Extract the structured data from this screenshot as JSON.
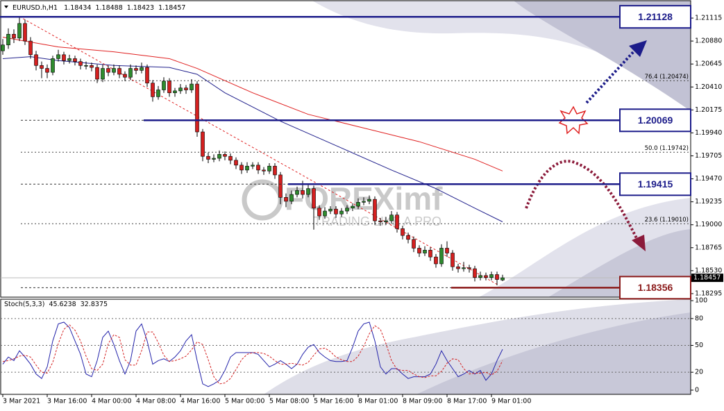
{
  "chart_data": {
    "type": "candlestick",
    "symbol": "EURUSD.h,H1",
    "up_color": "#2e8b2e",
    "down_color": "#d42020",
    "ylim": [
      1.18259,
      1.21293
    ],
    "yticks": [
      1.21115,
      {
        "value": 1.2088,
        "label": "1.20880"
      },
      1.20645,
      {
        "value": 1.2041,
        "label": "1.20410"
      },
      1.20175,
      {
        "value": 1.1994,
        "label": "1.19940"
      },
      1.19705,
      {
        "value": 1.1947,
        "label": "1.19470"
      },
      1.19235,
      {
        "value": 1.19,
        "label": "1.19000"
      },
      1.18765,
      {
        "value": 1.1853,
        "label": "1.18530"
      },
      1.18295
    ],
    "xticks": [
      {
        "value": 0,
        "label": "3 Mar 2021"
      },
      {
        "value": 8,
        "label": "3 Mar 16:00"
      },
      {
        "value": 16,
        "label": "4 Mar 00:00"
      },
      {
        "value": 24,
        "label": "4 Mar 08:00"
      },
      {
        "value": 32,
        "label": "4 Mar 16:00"
      },
      {
        "value": 40,
        "label": "5 Mar 00:00"
      },
      {
        "value": 48,
        "label": "5 Mar 08:00"
      },
      {
        "value": 56,
        "label": "5 Mar 16:00"
      },
      {
        "value": 64,
        "label": "8 Mar 01:00"
      },
      {
        "value": 72,
        "label": "8 Mar 09:00"
      },
      {
        "value": 80,
        "label": "8 Mar 17:00"
      },
      {
        "value": 88,
        "label": "9 Mar 01:00"
      }
    ],
    "ohlc": [
      [
        1.2078,
        1.209,
        1.2074,
        1.2084
      ],
      [
        1.2084,
        1.2101,
        1.208,
        1.2095
      ],
      [
        1.2095,
        1.21,
        1.2086,
        1.2091
      ],
      [
        1.2091,
        1.2113,
        1.2088,
        1.2106
      ],
      [
        1.2106,
        1.211,
        1.2084,
        1.2088
      ],
      [
        1.2088,
        1.2092,
        1.207,
        1.2074
      ],
      [
        1.2074,
        1.2078,
        1.2058,
        1.2063
      ],
      [
        1.2063,
        1.2067,
        1.205,
        1.206
      ],
      [
        1.206,
        1.2064,
        1.205,
        1.2056
      ],
      [
        1.2056,
        1.2073,
        1.2053,
        1.207
      ],
      [
        1.207,
        1.2079,
        1.2067,
        1.2074
      ],
      [
        1.2074,
        1.2077,
        1.2064,
        1.2068
      ],
      [
        1.2068,
        1.2074,
        1.2065,
        1.207
      ],
      [
        1.207,
        1.2073,
        1.2063,
        1.2067
      ],
      [
        1.2067,
        1.207,
        1.2059,
        1.2063
      ],
      [
        1.2063,
        1.2067,
        1.2059,
        1.2063
      ],
      [
        1.2063,
        1.2066,
        1.2057,
        1.2061
      ],
      [
        1.2061,
        1.2064,
        1.2045,
        1.2049
      ],
      [
        1.2049,
        1.2064,
        1.2046,
        1.206
      ],
      [
        1.206,
        1.2063,
        1.2052,
        1.2056
      ],
      [
        1.2056,
        1.2064,
        1.2053,
        1.206
      ],
      [
        1.206,
        1.2063,
        1.205,
        1.2054
      ],
      [
        1.2054,
        1.2057,
        1.2047,
        1.2051
      ],
      [
        1.2051,
        1.2064,
        1.2048,
        1.206
      ],
      [
        1.206,
        1.2063,
        1.2054,
        1.2058
      ],
      [
        1.2058,
        1.2066,
        1.2055,
        1.2061
      ],
      [
        1.2061,
        1.2064,
        1.2041,
        1.2045
      ],
      [
        1.2045,
        1.2048,
        1.2026,
        1.2031
      ],
      [
        1.2031,
        1.2042,
        1.2028,
        1.2038
      ],
      [
        1.2038,
        1.2051,
        1.2035,
        1.2047
      ],
      [
        1.2047,
        1.205,
        1.2031,
        1.2035
      ],
      [
        1.2035,
        1.204,
        1.2031,
        1.2037
      ],
      [
        1.2037,
        1.2044,
        1.2034,
        1.204
      ],
      [
        1.204,
        1.2043,
        1.2034,
        1.2038
      ],
      [
        1.2038,
        1.2049,
        1.2035,
        1.2044
      ],
      [
        1.2044,
        1.2047,
        1.199,
        1.1995
      ],
      [
        1.1995,
        1.1998,
        1.1965,
        1.197
      ],
      [
        1.197,
        1.1974,
        1.1963,
        1.1967
      ],
      [
        1.1967,
        1.1972,
        1.1964,
        1.1968
      ],
      [
        1.1968,
        1.1976,
        1.1965,
        1.1972
      ],
      [
        1.1972,
        1.1975,
        1.1966,
        1.197
      ],
      [
        1.197,
        1.1973,
        1.1962,
        1.1966
      ],
      [
        1.1966,
        1.1969,
        1.1957,
        1.1961
      ],
      [
        1.1961,
        1.1964,
        1.1952,
        1.1956
      ],
      [
        1.1956,
        1.1964,
        1.1953,
        1.196
      ],
      [
        1.196,
        1.1964,
        1.1957,
        1.1961
      ],
      [
        1.1961,
        1.1964,
        1.1952,
        1.1956
      ],
      [
        1.1956,
        1.1959,
        1.1951,
        1.1955
      ],
      [
        1.1955,
        1.1963,
        1.1952,
        1.196
      ],
      [
        1.196,
        1.1963,
        1.1947,
        1.1951
      ],
      [
        1.1951,
        1.1954,
        1.1921,
        1.1928
      ],
      [
        1.1928,
        1.1932,
        1.1918,
        1.1924
      ],
      [
        1.1924,
        1.1935,
        1.1921,
        1.1931
      ],
      [
        1.1931,
        1.1939,
        1.1928,
        1.1935
      ],
      [
        1.1935,
        1.1945,
        1.1927,
        1.1931
      ],
      [
        1.1931,
        1.1941,
        1.1928,
        1.1937
      ],
      [
        1.1937,
        1.194,
        1.1895,
        1.1917
      ],
      [
        1.1917,
        1.192,
        1.1905,
        1.1909
      ],
      [
        1.1909,
        1.1918,
        1.1906,
        1.1914
      ],
      [
        1.1914,
        1.1919,
        1.1911,
        1.1916
      ],
      [
        1.1916,
        1.1919,
        1.1907,
        1.1911
      ],
      [
        1.1911,
        1.1917,
        1.1908,
        1.1914
      ],
      [
        1.1914,
        1.192,
        1.1911,
        1.1917
      ],
      [
        1.1917,
        1.1922,
        1.1914,
        1.1919
      ],
      [
        1.1919,
        1.1927,
        1.1916,
        1.1923
      ],
      [
        1.1923,
        1.1928,
        1.192,
        1.1924
      ],
      [
        1.1924,
        1.193,
        1.1921,
        1.1926
      ],
      [
        1.1926,
        1.1929,
        1.19,
        1.1904
      ],
      [
        1.1904,
        1.1907,
        1.1899,
        1.1903
      ],
      [
        1.1903,
        1.1908,
        1.19,
        1.1904
      ],
      [
        1.1904,
        1.1914,
        1.1901,
        1.191
      ],
      [
        1.191,
        1.1913,
        1.1892,
        1.1896
      ],
      [
        1.1896,
        1.1899,
        1.1885,
        1.1889
      ],
      [
        1.1889,
        1.1892,
        1.1881,
        1.1885
      ],
      [
        1.1885,
        1.1888,
        1.1872,
        1.1876
      ],
      [
        1.1876,
        1.1879,
        1.1867,
        1.1871
      ],
      [
        1.1871,
        1.1878,
        1.1868,
        1.1874
      ],
      [
        1.1874,
        1.1877,
        1.1863,
        1.1867
      ],
      [
        1.1867,
        1.187,
        1.1856,
        1.186
      ],
      [
        1.186,
        1.188,
        1.1857,
        1.1876
      ],
      [
        1.1876,
        1.1883,
        1.1867,
        1.1871
      ],
      [
        1.1871,
        1.1874,
        1.1853,
        1.1857
      ],
      [
        1.1857,
        1.186,
        1.1851,
        1.1855
      ],
      [
        1.1855,
        1.1862,
        1.1852,
        1.1856
      ],
      [
        1.1856,
        1.1859,
        1.1851,
        1.1855
      ],
      [
        1.1855,
        1.1858,
        1.1842,
        1.1846
      ],
      [
        1.1846,
        1.1852,
        1.1843,
        1.1848
      ],
      [
        1.1848,
        1.1851,
        1.1843,
        1.1846
      ],
      [
        1.1846,
        1.1852,
        1.1843,
        1.1849
      ],
      [
        1.1849,
        1.1852,
        1.1838,
        1.1844
      ],
      [
        1.18434,
        1.18488,
        1.18423,
        1.18457
      ]
    ],
    "moving_averages": [
      {
        "color": "#e02020",
        "x": [
          0,
          10,
          20,
          30,
          35,
          45,
          55,
          65,
          75,
          85,
          90
        ],
        "values": [
          1.2092,
          1.2082,
          1.2077,
          1.207,
          1.206,
          1.2035,
          1.2013,
          1.1999,
          1.1985,
          1.1967,
          1.1955
        ]
      },
      {
        "color": "#20208c",
        "x": [
          0,
          5,
          10,
          20,
          30,
          35,
          40,
          50,
          60,
          70,
          78,
          85,
          90
        ],
        "values": [
          1.207,
          1.2072,
          1.2068,
          1.2063,
          1.2061,
          1.2054,
          1.2035,
          1.2006,
          1.1981,
          1.1956,
          1.1937,
          1.1917,
          1.1903
        ]
      }
    ],
    "trendline": {
      "color": "#e02020",
      "x": [
        3,
        89
      ],
      "values": [
        1.2113,
        1.1839
      ]
    },
    "levels": [
      {
        "value": 1.21128,
        "color": "#1c1c8a"
      },
      {
        "value": 1.20069,
        "color": "#1c1c8a"
      },
      {
        "value": 1.19415,
        "color": "#1c1c8a"
      },
      {
        "value": 1.18356,
        "color": "#8b1a1a"
      }
    ],
    "fibonacci": [
      {
        "label": "76.4 (1.20474)",
        "value": 1.20474
      },
      {
        "label": "50.0 (1.19742)",
        "value": 1.19742
      },
      {
        "label": "23.6 (1.19010)",
        "value": 1.1901
      }
    ],
    "watermark": {
      "brand": "FOREXimf",
      "tagline": "TRADING LIKE A PRO"
    },
    "stochastic": {
      "name": "Stoch(5,3,3)",
      "ylim": [
        -4.7,
        101.6
      ],
      "yticks": [
        100,
        80,
        50,
        20,
        0
      ],
      "levels": [
        80,
        50,
        20
      ],
      "series": [
        {
          "name": "main",
          "color": "#2222aa",
          "values": [
            29,
            37,
            33,
            44,
            37,
            29,
            18,
            13,
            26,
            55,
            74,
            76,
            70,
            55,
            40,
            18,
            15,
            33,
            59,
            66,
            51,
            33,
            18,
            33,
            66,
            74,
            55,
            29,
            33,
            35,
            32,
            37,
            44,
            55,
            62,
            33,
            7,
            4,
            7,
            11,
            22,
            37,
            42,
            42,
            42,
            42,
            40,
            33,
            26,
            29,
            33,
            29,
            24,
            29,
            40,
            48,
            51,
            42,
            37,
            33,
            32,
            32,
            33,
            48,
            66,
            74,
            76,
            55,
            26,
            18,
            24,
            24,
            18,
            13,
            15,
            15,
            15,
            18,
            29,
            44,
            33,
            24,
            15,
            18,
            22,
            18,
            22,
            11,
            18,
            33,
            45.6238
          ]
        },
        {
          "name": "signal",
          "color": "#d42020",
          "values": [
            32,
            33,
            35,
            38,
            39,
            37,
            28,
            20,
            19,
            31,
            52,
            68,
            73,
            67,
            55,
            38,
            24,
            22,
            29,
            52,
            62,
            59,
            34,
            28,
            28,
            44,
            65,
            65,
            53,
            39,
            32,
            33,
            35,
            38,
            45,
            54,
            51,
            34,
            15,
            7,
            8,
            13,
            23,
            34,
            40,
            42,
            42,
            41,
            38,
            33,
            29,
            29,
            30,
            29,
            28,
            31,
            39,
            46,
            47,
            43,
            37,
            34,
            32,
            32,
            38,
            49,
            63,
            72,
            68,
            52,
            33,
            23,
            22,
            22,
            18,
            15,
            14,
            16,
            16,
            21,
            30,
            35,
            34,
            24,
            18,
            19,
            19,
            20,
            17,
            21,
            32.8375
          ]
        }
      ]
    }
  }
}
